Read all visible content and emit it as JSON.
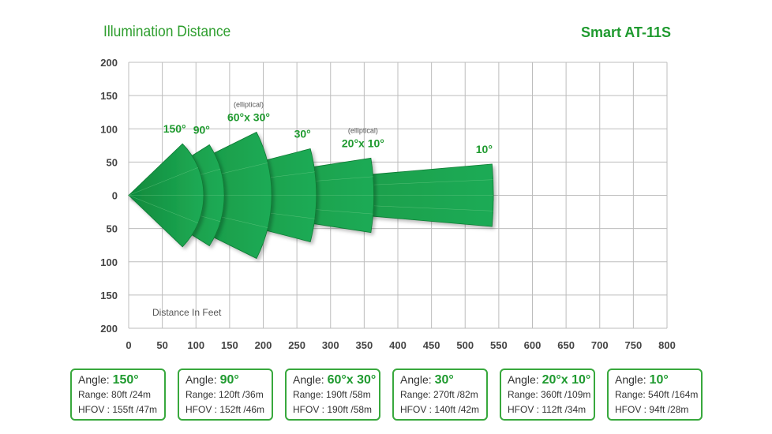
{
  "header": {
    "left_title": "Illumination Distance",
    "right_title": "Smart AT-11S"
  },
  "chart_data": {
    "type": "sector",
    "xlabel": "Distance In Feet",
    "xlim": [
      0,
      800
    ],
    "ylim": [
      -200,
      200
    ],
    "x_ticks": [
      "0",
      "50",
      "100",
      "150",
      "200",
      "250",
      "300",
      "350",
      "400",
      "450",
      "500",
      "550",
      "600",
      "650",
      "700",
      "750",
      "800"
    ],
    "y_ticks": [
      "200",
      "150",
      "100",
      "50",
      "0",
      "50",
      "100",
      "150",
      "200"
    ],
    "grid": true,
    "beams": [
      {
        "label": "150°",
        "note": "",
        "range_ft": 80,
        "half_width_ft": 77.5
      },
      {
        "label": "90°",
        "note": "",
        "range_ft": 120,
        "half_width_ft": 76
      },
      {
        "label": "60°x 30°",
        "note": "(elliptical)",
        "range_ft": 190,
        "half_width_ft": 95
      },
      {
        "label": "30°",
        "note": "",
        "range_ft": 270,
        "half_width_ft": 70
      },
      {
        "label": "20°x 10°",
        "note": "(elliptical)",
        "range_ft": 360,
        "half_width_ft": 56
      },
      {
        "label": "10°",
        "note": "",
        "range_ft": 540,
        "half_width_ft": 47
      }
    ],
    "colors": {
      "fill": "#1a9a45",
      "fill_light": "#29b05a",
      "grid": "#bdbdbd",
      "text": "#1f9a2f"
    }
  },
  "cards": [
    {
      "angle_label": "Angle:",
      "angle": "150°",
      "range": "Range: 80ft /24m",
      "hfov": "HFOV : 155ft /47m"
    },
    {
      "angle_label": "Angle:",
      "angle": "90°",
      "range": "Range: 120ft /36m",
      "hfov": "HFOV : 152ft /46m"
    },
    {
      "angle_label": "Angle:",
      "angle": "60°x 30°",
      "range": "Range: 190ft /58m",
      "hfov": "HFOV : 190ft /58m"
    },
    {
      "angle_label": "Angle:",
      "angle": "30°",
      "range": "Range: 270ft /82m",
      "hfov": "HFOV : 140ft /42m"
    },
    {
      "angle_label": "Angle:",
      "angle": "20°x 10°",
      "range": "Range: 360ft /109m",
      "hfov": "HFOV : 112ft /34m"
    },
    {
      "angle_label": "Angle:",
      "angle": "10°",
      "range": "Range: 540ft /164m",
      "hfov": "HFOV : 94ft /28m"
    }
  ]
}
